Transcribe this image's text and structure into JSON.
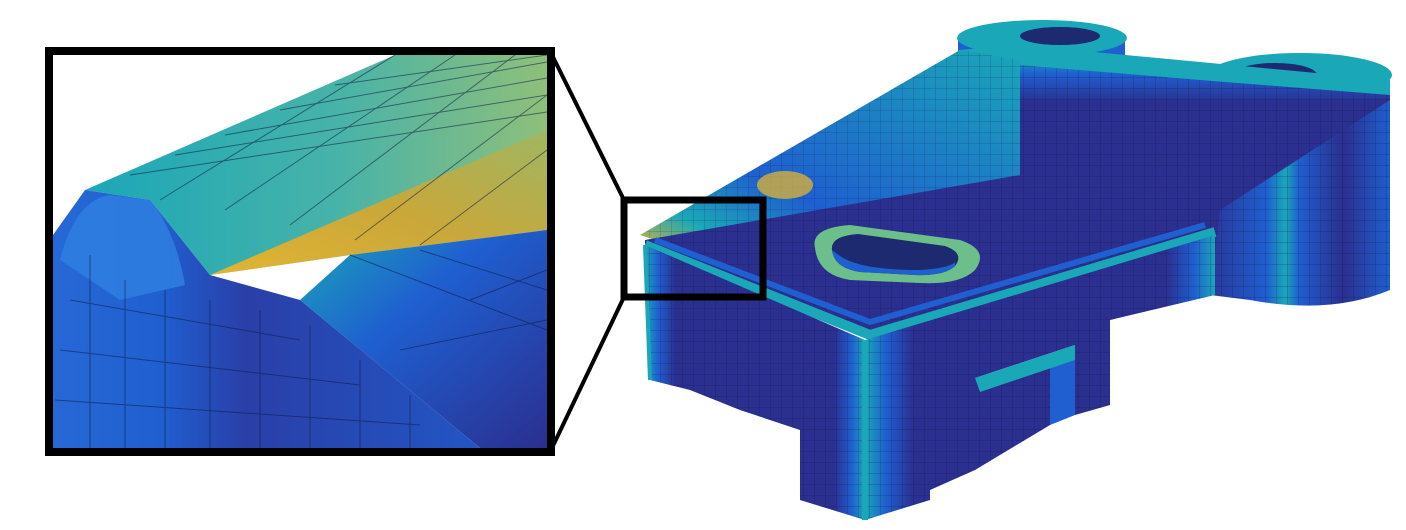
{
  "figure": {
    "description_free": true,
    "colormap": {
      "low": "#2b2f8f",
      "mid_low": "#1f5fd0",
      "mid": "#1aa7b8",
      "mid_high": "#6cbf8a",
      "high": "#e2b532"
    },
    "frame_color": "#000000",
    "background_color": "#ffffff"
  }
}
